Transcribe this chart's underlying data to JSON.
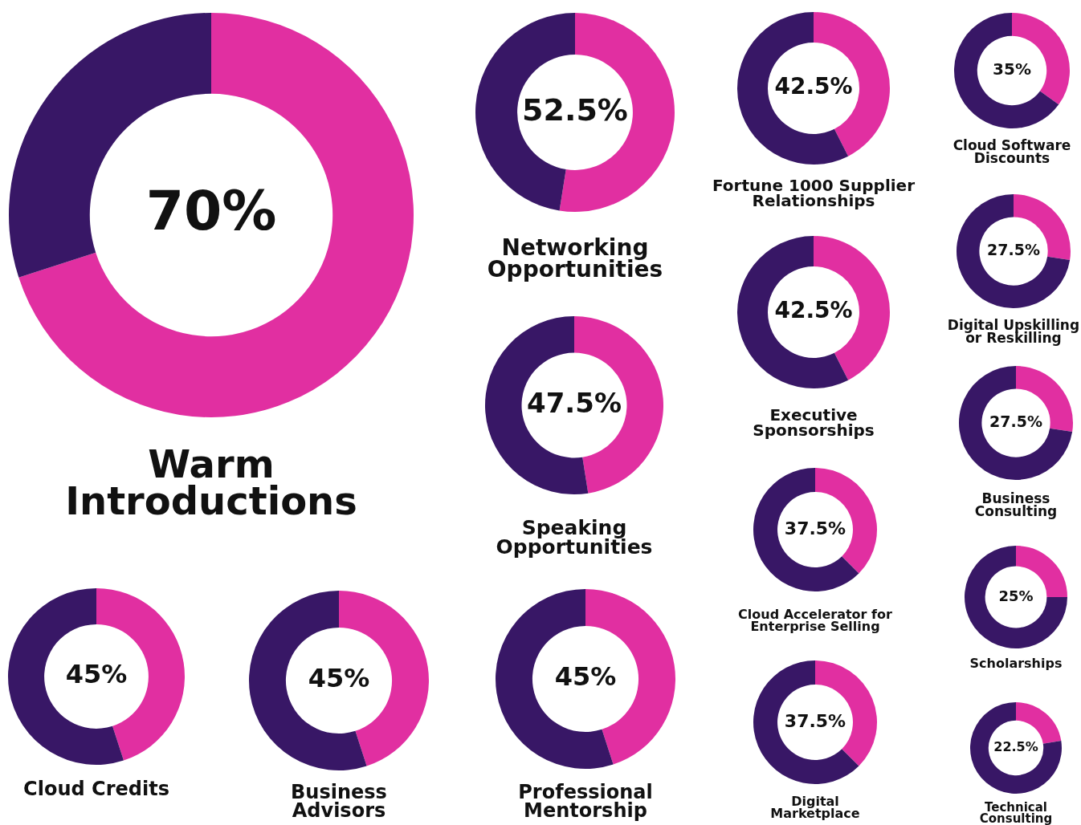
{
  "chart_data": [
    {
      "type": "donut",
      "title": "Warm Introductions",
      "categories": [
        null,
        null
      ],
      "values": [
        70,
        30
      ],
      "colors": [
        "#e12fa1",
        "#381766"
      ],
      "value_labels": [
        "70%",
        null
      ]
    },
    {
      "type": "donut",
      "title": "Networking Opportunities",
      "categories": [
        null,
        null
      ],
      "values": [
        52.5,
        47.5
      ],
      "colors": [
        "#e12fa1",
        "#381766"
      ],
      "value_labels": [
        "52.5%",
        null
      ]
    },
    {
      "type": "donut",
      "title": "Speaking Opportunities",
      "categories": [
        null,
        null
      ],
      "values": [
        47.5,
        52.5
      ],
      "colors": [
        "#e12fa1",
        "#381766"
      ],
      "value_labels": [
        "47.5%",
        null
      ]
    },
    {
      "type": "donut",
      "title": "Cloud Credits",
      "categories": [
        null,
        null
      ],
      "values": [
        45,
        55
      ],
      "colors": [
        "#e12fa1",
        "#381766"
      ],
      "value_labels": [
        "45%",
        null
      ]
    },
    {
      "type": "donut",
      "title": "Business Advisors",
      "categories": [
        null,
        null
      ],
      "values": [
        45,
        55
      ],
      "colors": [
        "#e12fa1",
        "#381766"
      ],
      "value_labels": [
        "45%",
        null
      ]
    },
    {
      "type": "donut",
      "title": "Professional Mentorship",
      "categories": [
        null,
        null
      ],
      "values": [
        45,
        55
      ],
      "colors": [
        "#e12fa1",
        "#381766"
      ],
      "value_labels": [
        "45%",
        null
      ]
    },
    {
      "type": "donut",
      "title": "Fortune 1000 Supplier Relationships",
      "categories": [
        null,
        null
      ],
      "values": [
        42.5,
        57.5
      ],
      "colors": [
        "#e12fa1",
        "#381766"
      ],
      "value_labels": [
        "42.5%",
        null
      ]
    },
    {
      "type": "donut",
      "title": "Executive Sponsorships",
      "categories": [
        null,
        null
      ],
      "values": [
        42.5,
        57.5
      ],
      "colors": [
        "#e12fa1",
        "#381766"
      ],
      "value_labels": [
        "42.5%",
        null
      ]
    },
    {
      "type": "donut",
      "title": "Cloud Accelerator for Enterprise Selling",
      "categories": [
        null,
        null
      ],
      "values": [
        37.5,
        62.5
      ],
      "colors": [
        "#e12fa1",
        "#381766"
      ],
      "value_labels": [
        "37.5%",
        null
      ]
    },
    {
      "type": "donut",
      "title": "Digital Marketplace",
      "categories": [
        null,
        null
      ],
      "values": [
        37.5,
        62.5
      ],
      "colors": [
        "#e12fa1",
        "#381766"
      ],
      "value_labels": [
        "37.5%",
        null
      ]
    },
    {
      "type": "donut",
      "title": "Cloud Software Discounts",
      "categories": [
        null,
        null
      ],
      "values": [
        35,
        65
      ],
      "colors": [
        "#e12fa1",
        "#381766"
      ],
      "value_labels": [
        "35%",
        null
      ]
    },
    {
      "type": "donut",
      "title": "Digital Upskilling or Reskilling",
      "categories": [
        null,
        null
      ],
      "values": [
        27.5,
        72.5
      ],
      "colors": [
        "#e12fa1",
        "#381766"
      ],
      "value_labels": [
        "27.5%",
        null
      ]
    },
    {
      "type": "donut",
      "title": "Business Consulting",
      "categories": [
        null,
        null
      ],
      "values": [
        27.5,
        72.5
      ],
      "colors": [
        "#e12fa1",
        "#381766"
      ],
      "value_labels": [
        "27.5%",
        null
      ]
    },
    {
      "type": "donut",
      "title": "Scholarships",
      "categories": [
        null,
        null
      ],
      "values": [
        25,
        75
      ],
      "colors": [
        "#e12fa1",
        "#381766"
      ],
      "value_labels": [
        "25%",
        null
      ]
    },
    {
      "type": "donut",
      "title": "Technical Consulting",
      "categories": [
        null,
        null
      ],
      "values": [
        22.5,
        77.5
      ],
      "colors": [
        "#e12fa1",
        "#381766"
      ],
      "value_labels": [
        "22.5%",
        null
      ]
    }
  ]
}
